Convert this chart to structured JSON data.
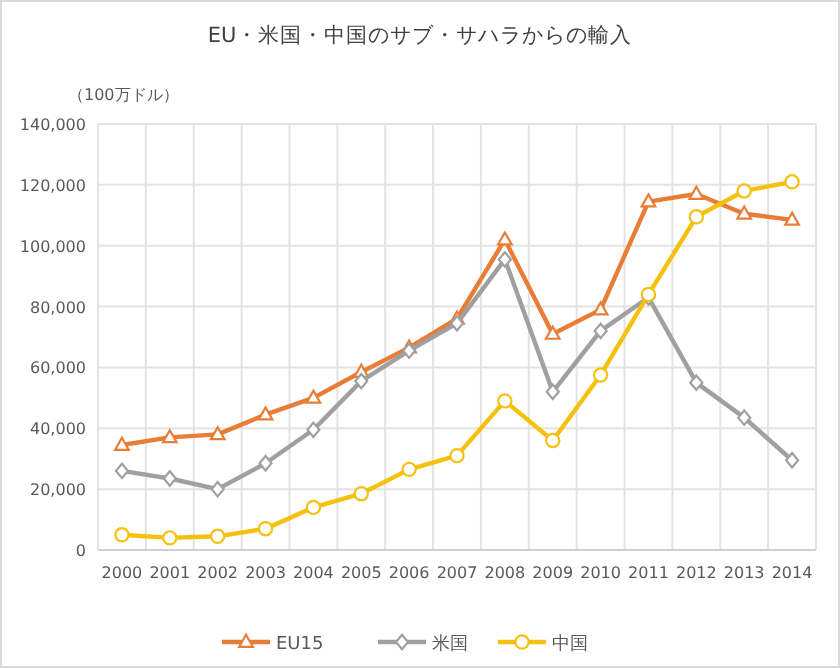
{
  "chart_data": {
    "type": "line",
    "title": "EU・米国・中国のサブ・サハラからの輸入",
    "ylabel": "（100万ドル）",
    "categories": [
      "2000",
      "2001",
      "2002",
      "2003",
      "2004",
      "2005",
      "2006",
      "2007",
      "2008",
      "2009",
      "2010",
      "2011",
      "2012",
      "2013",
      "2014"
    ],
    "series": [
      {
        "name": "EU15",
        "color": "#e87d37",
        "marker": "triangle",
        "values": [
          34500,
          37000,
          38000,
          44500,
          50000,
          58500,
          66500,
          76000,
          102000,
          71000,
          79000,
          114500,
          117000,
          110500,
          108500
        ]
      },
      {
        "name": "米国",
        "color": "#a0a0a0",
        "marker": "diamond",
        "values": [
          26000,
          23500,
          20000,
          28500,
          39500,
          55500,
          65500,
          74500,
          95500,
          52000,
          72000,
          83000,
          55000,
          43500,
          29500
        ]
      },
      {
        "name": "中国",
        "color": "#f5c10e",
        "marker": "circle",
        "values": [
          5000,
          4000,
          4500,
          7000,
          14000,
          18500,
          26500,
          31000,
          49000,
          36000,
          57500,
          84000,
          109500,
          118000,
          121000
        ]
      }
    ],
    "ylim": [
      0,
      140000
    ],
    "yticks": [
      {
        "value": 0,
        "label": "0"
      },
      {
        "value": 20000,
        "label": "20,000"
      },
      {
        "value": 40000,
        "label": "40,000"
      },
      {
        "value": 60000,
        "label": "60,000"
      },
      {
        "value": 80000,
        "label": "80,000"
      },
      {
        "value": 100000,
        "label": "100,000"
      },
      {
        "value": 120000,
        "label": "120,000"
      },
      {
        "value": 140000,
        "label": "140,000"
      }
    ],
    "grid": true,
    "legend": "bottom",
    "line_style": "solid"
  }
}
